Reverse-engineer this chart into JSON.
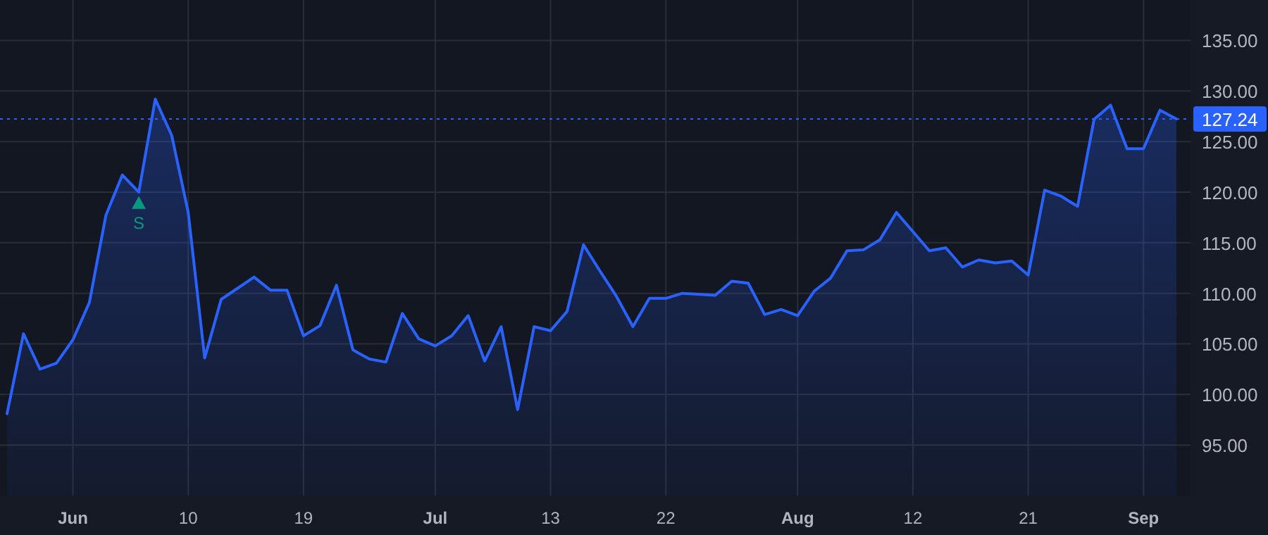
{
  "chart_data": {
    "type": "area",
    "categories": [
      null,
      null,
      null,
      null,
      "Jun",
      null,
      null,
      null,
      null,
      null,
      null,
      "10",
      null,
      null,
      null,
      null,
      null,
      null,
      "19",
      null,
      null,
      null,
      null,
      null,
      null,
      null,
      "Jul",
      null,
      null,
      null,
      null,
      null,
      null,
      "13",
      null,
      null,
      null,
      null,
      null,
      null,
      "22",
      null,
      null,
      null,
      null,
      null,
      null,
      null,
      "Aug",
      null,
      null,
      null,
      null,
      null,
      null,
      "12",
      null,
      null,
      null,
      null,
      null,
      null,
      "21",
      null,
      null,
      null,
      null,
      null,
      null,
      "Sep",
      null,
      null
    ],
    "series": [
      {
        "color": "#2962ff",
        "values": [
          98.1,
          106.0,
          102.5,
          103.1,
          105.4,
          109.1,
          117.7,
          121.7,
          120.0,
          129.2,
          125.6,
          118.0,
          103.6,
          109.4,
          110.5,
          111.6,
          110.3,
          110.3,
          105.8,
          106.8,
          110.8,
          104.4,
          103.5,
          103.2,
          108.0,
          105.5,
          104.8,
          105.8,
          107.8,
          103.3,
          106.7,
          98.5,
          106.7,
          106.3,
          108.2,
          114.8,
          112.2,
          109.7,
          106.7,
          109.5,
          109.5,
          110.0,
          109.9,
          109.8,
          111.2,
          111.0,
          107.9,
          108.4,
          107.8,
          110.2,
          111.5,
          114.2,
          114.3,
          115.3,
          118.0,
          116.1,
          114.2,
          114.5,
          112.6,
          113.3,
          113.0,
          113.2,
          111.8,
          120.2,
          119.6,
          118.6,
          127.2,
          128.6,
          124.3,
          124.3,
          128.1,
          127.24
        ]
      },
      {
        "type": "scatter",
        "name": "S",
        "color": "#089981",
        "marker": "triangle",
        "values": [
          null,
          null,
          null,
          null,
          null,
          null,
          null,
          null,
          118.9,
          null,
          null,
          null,
          null,
          null,
          null,
          null,
          null,
          null,
          null,
          null,
          null,
          null,
          null,
          null,
          null,
          null,
          null,
          null,
          null,
          null,
          null,
          null,
          null,
          null,
          null,
          null,
          null,
          null,
          null,
          null,
          null,
          null,
          null,
          null,
          null,
          null,
          null,
          null,
          null,
          null,
          null,
          null,
          null,
          null,
          null,
          null,
          null,
          null,
          null,
          null,
          null,
          null,
          null,
          null,
          null,
          null,
          null,
          null,
          null,
          null,
          null,
          null
        ]
      }
    ],
    "ylim": [
      90,
      139
    ],
    "yticks": [
      {
        "value": 95,
        "label": "95.00"
      },
      {
        "value": 100,
        "label": "100.00"
      },
      {
        "value": 105,
        "label": "105.00"
      },
      {
        "value": 110,
        "label": "110.00"
      },
      {
        "value": 115,
        "label": "115.00"
      },
      {
        "value": 120,
        "label": "120.00"
      },
      {
        "value": 125,
        "label": "125.00"
      },
      {
        "value": 130,
        "label": "130.00"
      },
      {
        "value": 135,
        "label": "135.00"
      }
    ],
    "ref_lines": [
      {
        "axis": "y",
        "value": 127.24,
        "label": "127.24",
        "color": "#2962ff",
        "line_style": "dotted"
      }
    ],
    "grid": true,
    "legend": false
  }
}
